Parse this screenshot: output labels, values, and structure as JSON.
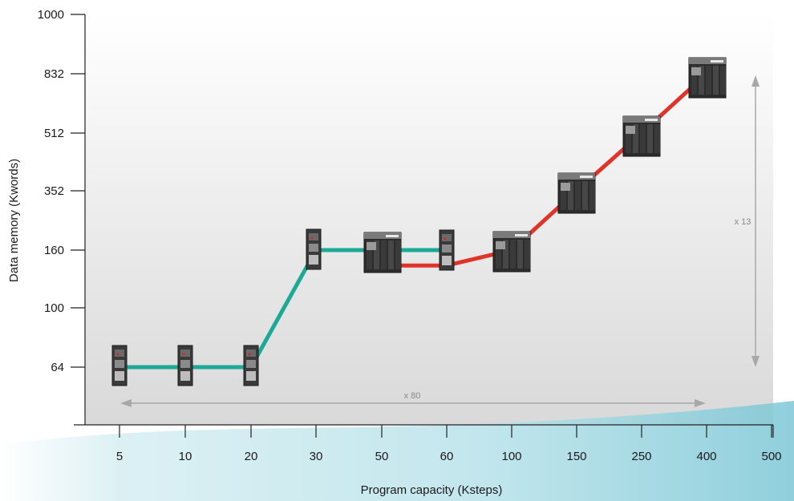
{
  "chart_data": {
    "type": "line",
    "xlabel": "Program capacity (Ksteps)",
    "ylabel": "Data memory (Kwords)",
    "x_ticks": [
      "5",
      "10",
      "20",
      "30",
      "50",
      "60",
      "100",
      "150",
      "250",
      "400",
      "500"
    ],
    "y_ticks": [
      "1000",
      "832",
      "512",
      "352",
      "160",
      "100",
      "64"
    ],
    "series": [
      {
        "color": "#1aaa96",
        "points": [
          {
            "x": "5",
            "y": "64"
          },
          {
            "x": "10",
            "y": "64"
          },
          {
            "x": "20",
            "y": "64"
          },
          {
            "x": "30",
            "y": "160"
          },
          {
            "x": "50",
            "y": "160"
          },
          {
            "x": "60",
            "y": "160"
          }
        ]
      },
      {
        "color": "#e0342a",
        "points": [
          {
            "x": "50",
            "y": 144
          },
          {
            "x": "60",
            "y": 144
          },
          {
            "x": "100",
            "y": "160"
          },
          {
            "x": "150",
            "y": "352"
          },
          {
            "x": "250",
            "y": "512"
          },
          {
            "x": "400",
            "y": "832"
          }
        ]
      }
    ],
    "annotations": {
      "horizontal_span": "x 80",
      "vertical_span": "x 13"
    },
    "colors": {
      "plot_bg_top": "#ffffff",
      "plot_bg_bottom": "#dcdcdc",
      "teal": "#1aaa96",
      "red": "#e0342a",
      "arrow": "#a8a8a8"
    }
  }
}
